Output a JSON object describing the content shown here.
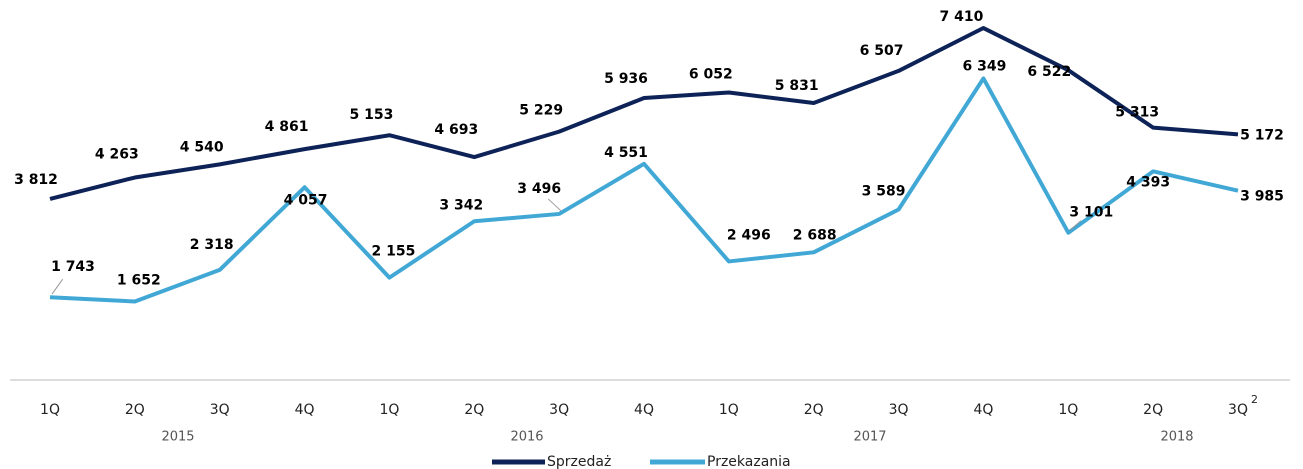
{
  "chart_data": {
    "type": "line",
    "categories": [
      "1Q",
      "2Q",
      "3Q",
      "4Q",
      "1Q",
      "2Q",
      "3Q",
      "4Q",
      "1Q",
      "2Q",
      "3Q",
      "4Q",
      "1Q",
      "2Q",
      "3Q"
    ],
    "footnote_mark": "2",
    "year_labels": [
      "2015",
      "2016",
      "2017",
      "2018"
    ],
    "ylim": [
      0,
      8000
    ],
    "series": [
      {
        "name": "Sprzedaż",
        "color": "#0d2257",
        "values": [
          3812,
          4263,
          4540,
          4861,
          5153,
          4693,
          5229,
          5936,
          6052,
          5831,
          6507,
          7410,
          6522,
          5313,
          5172
        ],
        "value_labels": [
          "3 812",
          "4 263",
          "4 540",
          "4 861",
          "5 153",
          "4 693",
          "5 229",
          "5 936",
          "6 052",
          "5 831",
          "6 507",
          "7 410",
          "6 522",
          "5 313",
          "5 172"
        ]
      },
      {
        "name": "Przekazania",
        "color": "#41a8d6",
        "values": [
          1743,
          1652,
          2318,
          4057,
          2155,
          3342,
          3496,
          4551,
          2496,
          2688,
          3589,
          6349,
          3101,
          4393,
          3985
        ],
        "value_labels": [
          "1 743",
          "1 652",
          "2 318",
          "4 057",
          "2 155",
          "3 342",
          "3 496",
          "4 551",
          "2 496",
          "2 688",
          "3 589",
          "6 349",
          "3 101",
          "4 393",
          "3 985"
        ]
      }
    ]
  }
}
